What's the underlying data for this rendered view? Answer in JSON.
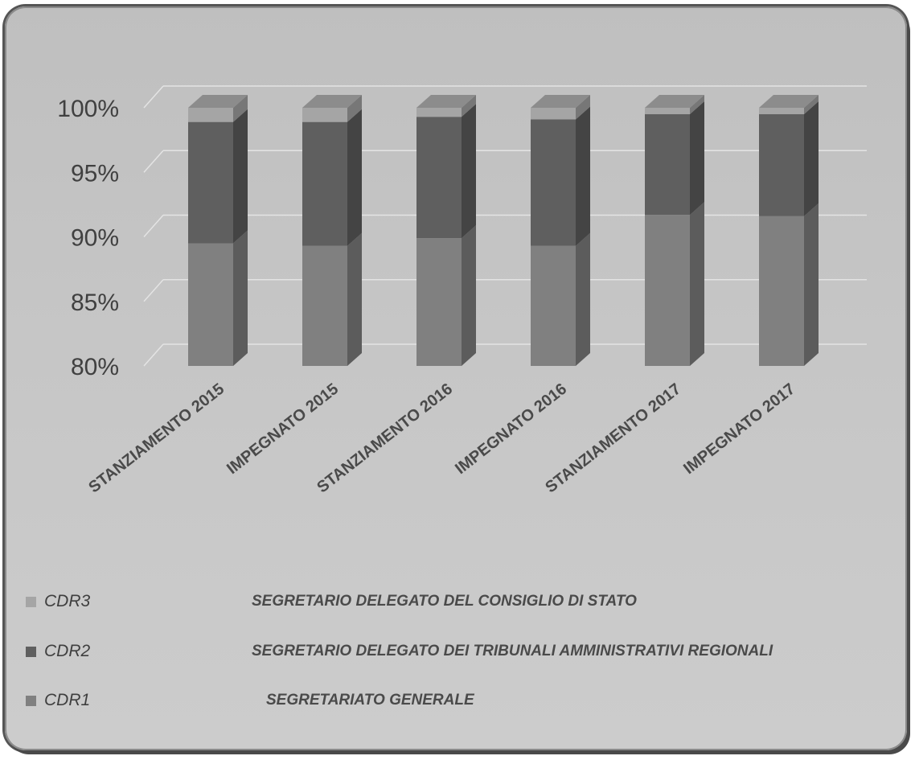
{
  "chart_data": {
    "type": "bar",
    "stacked": "percent",
    "three_d": true,
    "grid": true,
    "legend_position": "bottom",
    "categories": [
      "STANZIAMENTO 2015",
      "IMPEGNATO 2015",
      "STANZIAMENTO 2016",
      "IMPEGNATO 2016",
      "STANZIAMENTO 2017",
      "IMPEGNATO 2017"
    ],
    "ylim": [
      80,
      100
    ],
    "yticks": [
      "80%",
      "85%",
      "90%",
      "95%",
      "100%"
    ],
    "ytick_values": [
      80,
      85,
      90,
      95,
      100
    ],
    "series": [
      {
        "name": "CDR1",
        "description": "SEGRETARIATO GENERALE",
        "color": "#808080",
        "values": [
          89.5,
          89.3,
          89.9,
          89.3,
          91.7,
          91.6
        ]
      },
      {
        "name": "CDR2",
        "description": "SEGRETARIO  DELEGATO DEI TRIBUNALI AMMINISTRATIVI REGIONALI",
        "color": "#5f5f5f",
        "values": [
          9.4,
          9.6,
          9.4,
          9.8,
          7.8,
          7.9
        ]
      },
      {
        "name": "CDR3",
        "description": "SEGRETARIO  DELEGATO DEL CONSIGLIO DI STATO",
        "color": "#a5a5a5",
        "values": [
          1.1,
          1.1,
          0.7,
          0.9,
          0.5,
          0.5
        ]
      }
    ]
  }
}
